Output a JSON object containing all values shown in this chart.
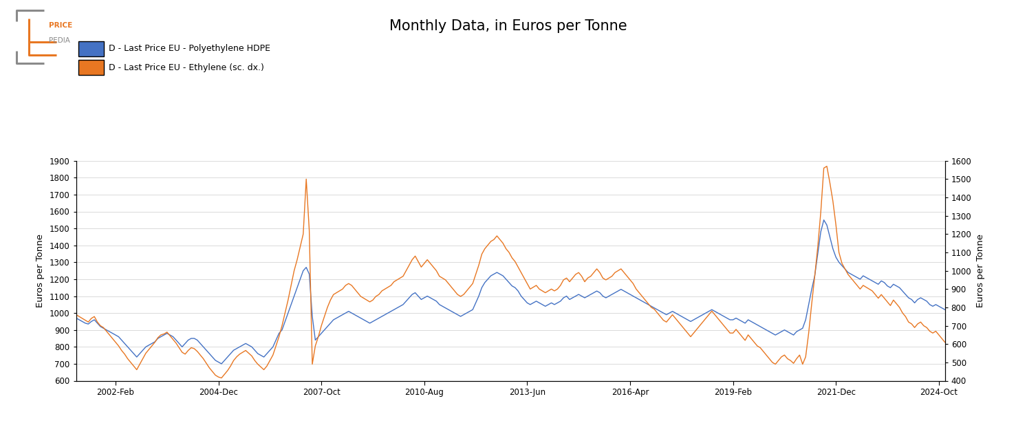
{
  "title": "Monthly Data, in Euros per Tonne",
  "ylabel_left": "Euros per Tonne",
  "ylabel_right": "Euros per Tonne",
  "legend_hdpe": "D - Last Price EU - Polyethylene HDPE",
  "legend_ethylene": "D - Last Price EU - Ethylene (sc. dx.)",
  "color_hdpe": "#4472C4",
  "color_ethylene": "#E87722",
  "ylim_left": [
    600,
    1900
  ],
  "ylim_right": [
    400,
    1600
  ],
  "yticks_left": [
    600,
    700,
    800,
    900,
    1000,
    1100,
    1200,
    1300,
    1400,
    1500,
    1600,
    1700,
    1800,
    1900
  ],
  "yticks_right": [
    400,
    500,
    600,
    700,
    800,
    900,
    1000,
    1100,
    1200,
    1300,
    1400,
    1500,
    1600
  ],
  "xtick_labels": [
    "2002-Feb",
    "2004-Dec",
    "2007-Oct",
    "2010-Aug",
    "2013-Jun",
    "2016-Apr",
    "2019-Feb",
    "2021-Dec",
    "2024-Oct"
  ],
  "background_color": "#ffffff",
  "logo_text_price": "PRICE",
  "logo_text_pedia": "PEDIA",
  "logo_color_orange": "#E87722",
  "logo_color_gray": "#8a8a8a",
  "hdpe_values": [
    970,
    960,
    950,
    940,
    935,
    950,
    960,
    940,
    920,
    910,
    900,
    890,
    880,
    870,
    860,
    840,
    820,
    800,
    780,
    760,
    740,
    760,
    780,
    800,
    810,
    820,
    830,
    850,
    860,
    870,
    880,
    870,
    860,
    840,
    820,
    800,
    820,
    840,
    850,
    850,
    840,
    820,
    800,
    780,
    760,
    740,
    720,
    710,
    700,
    720,
    740,
    760,
    780,
    790,
    800,
    810,
    820,
    810,
    800,
    780,
    760,
    750,
    740,
    760,
    780,
    800,
    840,
    880,
    900,
    950,
    1000,
    1050,
    1100,
    1150,
    1200,
    1250,
    1270,
    1230,
    980,
    840,
    860,
    880,
    900,
    920,
    940,
    960,
    970,
    980,
    990,
    1000,
    1010,
    1000,
    990,
    980,
    970,
    960,
    950,
    940,
    950,
    960,
    970,
    980,
    990,
    1000,
    1010,
    1020,
    1030,
    1040,
    1050,
    1070,
    1090,
    1110,
    1120,
    1100,
    1080,
    1090,
    1100,
    1090,
    1080,
    1070,
    1050,
    1040,
    1030,
    1020,
    1010,
    1000,
    990,
    980,
    990,
    1000,
    1010,
    1020,
    1060,
    1100,
    1150,
    1180,
    1200,
    1220,
    1230,
    1240,
    1230,
    1220,
    1200,
    1180,
    1160,
    1150,
    1130,
    1100,
    1080,
    1060,
    1050,
    1060,
    1070,
    1060,
    1050,
    1040,
    1050,
    1060,
    1050,
    1060,
    1070,
    1090,
    1100,
    1080,
    1090,
    1100,
    1110,
    1100,
    1090,
    1100,
    1110,
    1120,
    1130,
    1120,
    1100,
    1090,
    1100,
    1110,
    1120,
    1130,
    1140,
    1130,
    1120,
    1110,
    1100,
    1090,
    1080,
    1070,
    1060,
    1050,
    1040,
    1030,
    1020,
    1010,
    1000,
    990,
    1000,
    1010,
    1000,
    990,
    980,
    970,
    960,
    950,
    960,
    970,
    980,
    990,
    1000,
    1010,
    1020,
    1010,
    1000,
    990,
    980,
    970,
    960,
    960,
    970,
    960,
    950,
    940,
    960,
    950,
    940,
    930,
    920,
    910,
    900,
    890,
    880,
    870,
    880,
    890,
    900,
    890,
    880,
    870,
    890,
    900,
    910,
    960,
    1050,
    1140,
    1220,
    1350,
    1480,
    1550,
    1520,
    1450,
    1380,
    1330,
    1300,
    1280,
    1260,
    1240,
    1230,
    1220,
    1210,
    1200,
    1220,
    1210,
    1200,
    1190,
    1180,
    1170,
    1190,
    1180,
    1160,
    1150,
    1170,
    1160,
    1150,
    1130,
    1110,
    1090,
    1080,
    1060,
    1080,
    1090,
    1080,
    1070,
    1050,
    1040,
    1050,
    1040,
    1030,
    1020
  ],
  "ethylene_values": [
    760,
    750,
    740,
    730,
    720,
    740,
    750,
    720,
    700,
    690,
    670,
    650,
    630,
    610,
    590,
    565,
    545,
    520,
    500,
    480,
    460,
    490,
    520,
    550,
    570,
    590,
    610,
    635,
    650,
    655,
    665,
    645,
    625,
    605,
    580,
    555,
    545,
    565,
    580,
    575,
    560,
    540,
    520,
    495,
    470,
    450,
    430,
    420,
    415,
    435,
    455,
    480,
    510,
    530,
    545,
    555,
    565,
    550,
    535,
    510,
    490,
    475,
    460,
    480,
    510,
    540,
    590,
    640,
    700,
    770,
    840,
    920,
    1000,
    1060,
    1130,
    1200,
    1500,
    1220,
    490,
    590,
    640,
    700,
    750,
    800,
    840,
    870,
    880,
    890,
    900,
    920,
    930,
    920,
    900,
    880,
    860,
    850,
    840,
    830,
    840,
    860,
    870,
    890,
    900,
    910,
    920,
    940,
    950,
    960,
    970,
    1000,
    1030,
    1060,
    1080,
    1050,
    1020,
    1040,
    1060,
    1040,
    1020,
    1000,
    970,
    960,
    950,
    930,
    910,
    890,
    870,
    860,
    870,
    890,
    910,
    930,
    980,
    1030,
    1090,
    1120,
    1140,
    1160,
    1170,
    1190,
    1170,
    1150,
    1120,
    1100,
    1070,
    1050,
    1020,
    990,
    960,
    930,
    900,
    910,
    920,
    900,
    890,
    880,
    890,
    900,
    890,
    900,
    920,
    950,
    960,
    940,
    960,
    980,
    990,
    970,
    940,
    960,
    970,
    990,
    1010,
    990,
    960,
    950,
    960,
    970,
    990,
    1000,
    1010,
    990,
    970,
    950,
    930,
    900,
    880,
    860,
    840,
    820,
    800,
    790,
    770,
    750,
    730,
    720,
    740,
    760,
    740,
    720,
    700,
    680,
    660,
    640,
    660,
    680,
    700,
    720,
    740,
    760,
    780,
    760,
    740,
    720,
    700,
    680,
    660,
    660,
    680,
    660,
    640,
    620,
    650,
    630,
    610,
    590,
    580,
    560,
    540,
    520,
    500,
    490,
    510,
    530,
    540,
    520,
    510,
    495,
    520,
    540,
    490,
    530,
    660,
    820,
    970,
    1130,
    1320,
    1560,
    1570,
    1480,
    1380,
    1250,
    1100,
    1040,
    1010,
    980,
    960,
    940,
    920,
    900,
    920,
    910,
    900,
    890,
    870,
    850,
    870,
    850,
    830,
    810,
    840,
    820,
    800,
    770,
    750,
    720,
    710,
    690,
    710,
    720,
    700,
    690,
    670,
    660,
    670,
    650,
    630,
    610
  ]
}
